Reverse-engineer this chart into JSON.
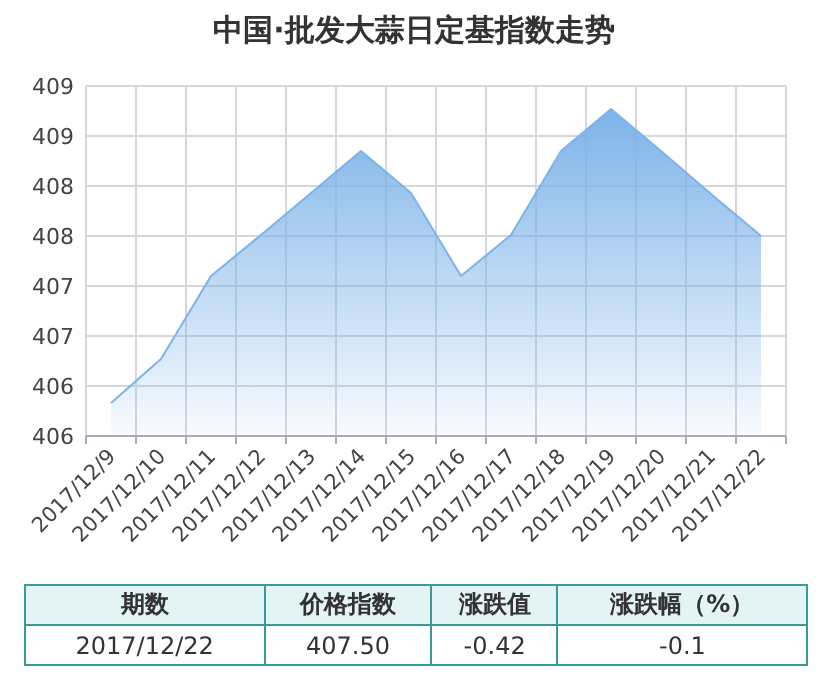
{
  "chart_data": {
    "type": "area",
    "title": "中国·批发大蒜日定基指数走势",
    "categories": [
      "2017/12/9",
      "2017/12/10",
      "2017/12/11",
      "2017/12/12",
      "2017/12/13",
      "2017/12/14",
      "2017/12/15",
      "2017/12/16",
      "2017/12/17",
      "2017/12/18",
      "2017/12/19",
      "2017/12/20",
      "2017/12/21",
      "2017/12/22"
    ],
    "values": [
      405.83,
      406.27,
      407.1,
      407.51,
      407.93,
      408.35,
      407.93,
      407.1,
      407.51,
      408.35,
      408.77,
      408.35,
      407.92,
      407.5
    ],
    "color": "#7db3e8",
    "ylim": [
      405.5,
      409
    ],
    "yticks": [
      {
        "value": 405.5,
        "label": "406"
      },
      {
        "value": 406,
        "label": "406"
      },
      {
        "value": 406.5,
        "label": "407"
      },
      {
        "value": 407,
        "label": "407"
      },
      {
        "value": 407.5,
        "label": "408"
      },
      {
        "value": 408,
        "label": "408"
      },
      {
        "value": 408.5,
        "label": "409"
      },
      {
        "value": 409,
        "label": "409"
      }
    ],
    "grid": true,
    "annotations": [
      "期数",
      "价格指数",
      "涨跌值",
      "涨跌幅（%）",
      "2017/12/22",
      "407.50",
      "-0.42",
      "-0.1"
    ]
  }
}
